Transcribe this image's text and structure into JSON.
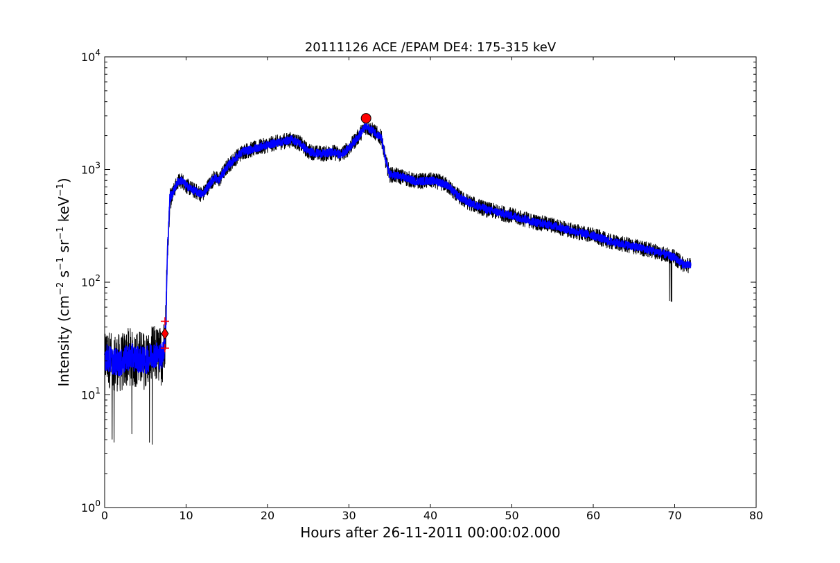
{
  "chart_data": {
    "type": "line",
    "title": "20111126 ACE /EPAM DE4: 175-315 keV",
    "xlabel": "Hours after 26-11-2011 00:00:02.000",
    "ylabel": {
      "prefix": "Intensity (cm",
      "exp1": "−2",
      "part2": " s",
      "exp2": "−1",
      "part3": " sr",
      "exp3": "−1",
      "part4": " keV",
      "exp4": "−1",
      "suffix": ")"
    },
    "xlim": [
      0,
      80
    ],
    "ylim": [
      1,
      10000
    ],
    "yscale": "log",
    "x_ticks": [
      0,
      10,
      20,
      30,
      40,
      50,
      60,
      70,
      80
    ],
    "y_ticks": [
      {
        "base": "10",
        "exp": "0",
        "value": 1
      },
      {
        "base": "10",
        "exp": "1",
        "value": 10
      },
      {
        "base": "10",
        "exp": "2",
        "value": 100
      },
      {
        "base": "10",
        "exp": "3",
        "value": 1000
      },
      {
        "base": "10",
        "exp": "4",
        "value": 10000
      }
    ],
    "grid": false,
    "series": [
      {
        "color": "#000000",
        "style": "raw-noisy",
        "x": [
          0,
          1,
          2,
          3,
          4,
          5,
          6,
          7,
          7.2,
          7.5,
          7.7,
          8,
          8.5,
          9,
          9.5,
          10,
          11,
          12,
          13,
          13.5,
          14,
          15,
          16,
          17,
          18,
          19,
          20,
          21,
          22,
          23,
          24,
          25,
          26,
          27,
          28,
          29,
          30,
          31,
          32,
          33,
          34,
          34.5,
          35,
          36,
          37,
          38,
          39,
          40,
          41,
          42,
          43,
          44,
          45,
          47,
          50,
          53,
          55,
          57,
          60,
          62,
          64,
          66,
          68,
          70,
          71,
          72
        ],
        "y": [
          22,
          20,
          19,
          22,
          21,
          20,
          23,
          22,
          24,
          40,
          180,
          550,
          650,
          780,
          800,
          720,
          650,
          600,
          760,
          850,
          800,
          1050,
          1250,
          1450,
          1500,
          1580,
          1650,
          1720,
          1780,
          1850,
          1700,
          1450,
          1400,
          1380,
          1430,
          1350,
          1550,
          1900,
          2400,
          2200,
          1900,
          1200,
          900,
          880,
          840,
          790,
          790,
          800,
          780,
          730,
          620,
          540,
          500,
          440,
          390,
          340,
          320,
          290,
          260,
          230,
          215,
          200,
          185,
          165,
          145,
          140
        ]
      },
      {
        "color": "#0000ff",
        "style": "smoothed",
        "x": [
          0,
          1,
          2,
          3,
          4,
          5,
          6,
          7,
          7.2,
          7.5,
          7.7,
          8,
          8.5,
          9,
          9.5,
          10,
          11,
          12,
          13,
          13.5,
          14,
          15,
          16,
          17,
          18,
          19,
          20,
          21,
          22,
          23,
          24,
          25,
          26,
          27,
          28,
          29,
          30,
          31,
          32,
          33,
          34,
          34.5,
          35,
          36,
          37,
          38,
          39,
          40,
          41,
          42,
          43,
          44,
          45,
          47,
          50,
          53,
          55,
          57,
          60,
          62,
          64,
          66,
          68,
          70,
          71,
          72
        ],
        "y": [
          22,
          20,
          19,
          22,
          21,
          20,
          23,
          22,
          24,
          40,
          180,
          550,
          650,
          780,
          800,
          720,
          650,
          600,
          760,
          850,
          800,
          1050,
          1250,
          1450,
          1500,
          1580,
          1650,
          1720,
          1780,
          1850,
          1700,
          1450,
          1400,
          1380,
          1430,
          1350,
          1550,
          1900,
          2400,
          2200,
          1900,
          1200,
          900,
          880,
          840,
          790,
          790,
          800,
          780,
          730,
          620,
          540,
          500,
          440,
          390,
          340,
          320,
          290,
          260,
          230,
          215,
          200,
          185,
          165,
          145,
          140
        ]
      }
    ],
    "markers": [
      {
        "kind": "circle",
        "x": 32.1,
        "y": 2850,
        "color": "#ff0000"
      },
      {
        "kind": "diamond",
        "x": 7.4,
        "y": 35,
        "color": "#ff0000"
      },
      {
        "kind": "plus",
        "x": 7.4,
        "y": 45,
        "color": "#ff0000"
      },
      {
        "kind": "plus",
        "x": 7.4,
        "y": 26,
        "color": "#ff0000"
      }
    ]
  }
}
